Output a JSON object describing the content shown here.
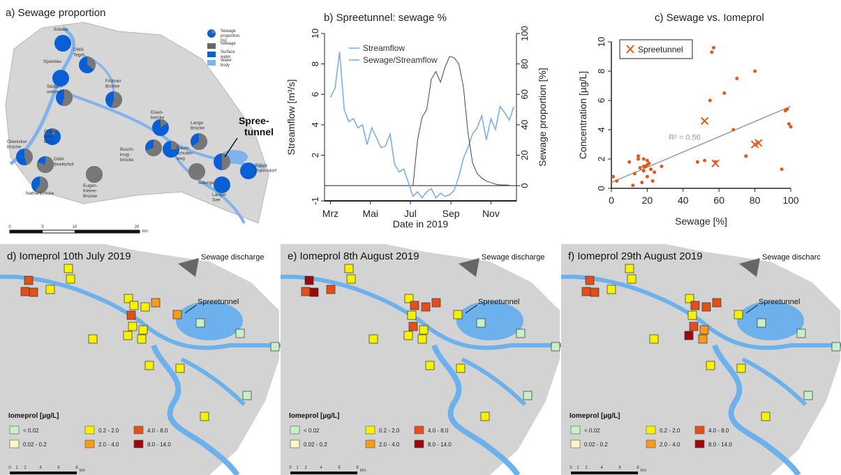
{
  "panel_a": {
    "title": "a) Sewage proportion",
    "legend": [
      "Sewage proportion [%]",
      "Sewage",
      "Surface water",
      "Water body"
    ],
    "stations": [
      {
        "label": "Ilsbose",
        "sewage": 0
      },
      {
        "label": "DWA Tegel",
        "sewage": 0.35
      },
      {
        "label": "Spandau",
        "sewage": 0
      },
      {
        "label": "Stößen- seesee",
        "sewage": 0.55
      },
      {
        "label": "Frühner Brücke",
        "sewage": 0.55
      },
      {
        "label": "Eisen- brücke",
        "sewage": 0.15
      },
      {
        "label": "Grune- wald- turm",
        "sewage": 0.1
      },
      {
        "label": "Busch- krug- brücke",
        "sewage": 0.7
      },
      {
        "label": "Baum- schulen- weg",
        "sewage": 0.25
      },
      {
        "label": "Lange Brücke",
        "sewage": 0.65
      },
      {
        "label": "Fähre Rahnsdorf",
        "sewage": 0
      },
      {
        "label": "Glienicker Brücke",
        "sewage": 0.45
      },
      {
        "label": "DWA Beelitzhof",
        "sewage": 0.8
      },
      {
        "label": "Eugen- Kleine- Brücke",
        "sewage": 1.0
      },
      {
        "label": "Adlergestell",
        "sewage": 1.0
      },
      {
        "label": "Nathanbrücke",
        "sewage": 0.6
      },
      {
        "label": "Langer See",
        "sewage": 0
      },
      {
        "label": "",
        "sewage": 0.5
      }
    ],
    "highlight": "Spree- tunnel",
    "scale_ticks": [
      "0",
      "5",
      "10",
      "20"
    ],
    "scale_unit": "km"
  },
  "chart_data": [
    {
      "type": "line",
      "title": "b) Spreetunnel: sewage %",
      "xlabel": "Date in 2019",
      "ylabel_left": "Streamflow [m³/s]",
      "ylabel_right": "Sewage proportion [%]",
      "x_ticks": [
        "Mrz",
        "Mai",
        "Jul",
        "Sep",
        "Nov"
      ],
      "ylim_left": [
        -1,
        10
      ],
      "ylim_right": [
        -10,
        100
      ],
      "left_ticks": [
        -1,
        2,
        4,
        6,
        8,
        10
      ],
      "right_ticks": [
        0,
        20,
        40,
        60,
        80,
        100
      ],
      "series": [
        {
          "name": "Streamflow",
          "axis": "left",
          "color": "#7aaee6",
          "x": [
            "2019-03-01",
            "2019-03-08",
            "2019-03-15",
            "2019-03-22",
            "2019-03-29",
            "2019-04-05",
            "2019-04-12",
            "2019-04-19",
            "2019-04-26",
            "2019-05-03",
            "2019-05-10",
            "2019-05-17",
            "2019-05-24",
            "2019-05-31",
            "2019-06-07",
            "2019-06-14",
            "2019-06-21",
            "2019-06-28",
            "2019-07-05",
            "2019-07-12",
            "2019-07-19",
            "2019-07-26",
            "2019-08-02",
            "2019-08-09",
            "2019-08-16",
            "2019-08-23",
            "2019-08-30",
            "2019-09-06",
            "2019-09-13",
            "2019-09-20",
            "2019-09-27",
            "2019-10-04",
            "2019-10-11",
            "2019-10-18",
            "2019-10-25",
            "2019-11-01",
            "2019-11-08",
            "2019-11-15",
            "2019-11-22",
            "2019-11-29",
            "2019-12-06"
          ],
          "y": [
            5.8,
            6.4,
            8.8,
            5.0,
            4.2,
            4.4,
            3.8,
            4.0,
            2.7,
            3.8,
            3.2,
            2.5,
            2.6,
            3.4,
            1.4,
            0.9,
            1.1,
            0.2,
            -0.7,
            -0.4,
            -0.8,
            -0.4,
            -0.2,
            -0.8,
            -0.5,
            -0.7,
            -0.6,
            -0.3,
            0.6,
            1.8,
            2.5,
            3.4,
            3.8,
            4.6,
            3.0,
            4.4,
            3.7,
            5.2,
            4.8,
            4.3,
            5.2
          ]
        },
        {
          "name": "Sewage/Streamflow",
          "axis": "right",
          "color": "#444444",
          "x": [
            "2019-07-05",
            "2019-07-12",
            "2019-07-19",
            "2019-07-26",
            "2019-08-02",
            "2019-08-09",
            "2019-08-16",
            "2019-08-23",
            "2019-08-30",
            "2019-09-06",
            "2019-09-13",
            "2019-09-20",
            "2019-09-27",
            "2019-10-04",
            "2019-10-11",
            "2019-10-18",
            "2019-10-25",
            "2019-11-01",
            "2019-11-08",
            "2019-11-15",
            "2019-11-22",
            "2019-11-29"
          ],
          "y": [
            0,
            30,
            45,
            50,
            70,
            75,
            68,
            78,
            85,
            84,
            80,
            65,
            35,
            15,
            8,
            5,
            3,
            2,
            1,
            0.5,
            0.5,
            0.3
          ]
        }
      ]
    },
    {
      "type": "scatter",
      "title": "c) Sewage vs. Iomeprol",
      "xlabel": "Sewage [%]",
      "ylabel": "Concentration [µg/L]",
      "xlim": [
        0,
        100
      ],
      "ylim": [
        0,
        10
      ],
      "x_ticks": [
        0,
        20,
        40,
        60,
        80,
        100
      ],
      "y_ticks": [
        0,
        2,
        4,
        6,
        8,
        10
      ],
      "annotation": "R² = 0.56",
      "legend": "Spreetunnel",
      "fit": {
        "x": [
          0,
          100
        ],
        "y": [
          0.4,
          5.6
        ]
      },
      "series": [
        {
          "name": "",
          "color": "#e05a1f",
          "x": [
            10,
            13,
            15,
            17,
            18,
            18,
            19,
            20,
            20,
            21,
            22,
            23,
            15,
            18,
            24,
            28,
            48,
            52,
            55,
            56,
            57,
            58,
            63,
            68,
            70,
            75,
            80,
            95,
            97,
            98,
            99,
            100,
            12,
            16,
            20,
            3,
            1
          ],
          "y": [
            1.8,
            1.0,
            2.0,
            0.4,
            1.2,
            2.0,
            1.5,
            1.9,
            0.8,
            1.7,
            1.3,
            0.5,
            2.2,
            1.5,
            1.1,
            1.5,
            1.8,
            1.9,
            6.0,
            9.3,
            9.6,
            1.8,
            6.5,
            4.0,
            7.5,
            2.2,
            8.0,
            1.3,
            5.3,
            5.4,
            4.4,
            4.2,
            0.2,
            1.4,
            1.6,
            0.5,
            0.8
          ]
        },
        {
          "name": "Spreetunnel",
          "marker": "x",
          "color": "#e05a1f",
          "x": [
            52,
            58,
            80,
            82
          ],
          "y": [
            4.6,
            1.7,
            3.0,
            3.1
          ]
        }
      ]
    }
  ],
  "maps": [
    {
      "title": "d) Iomeprol 10th July 2019",
      "discharge": "Sewage discharge",
      "label": "Spreetunnel"
    },
    {
      "title": "e) Iomeprol 8th August 2019",
      "discharge": "Sewage discharge",
      "label": "Spreetunnel"
    },
    {
      "title": "f) Iomeprol 29th August 2019",
      "discharge": "Sewage discharc",
      "label": "Spreetunnel"
    }
  ],
  "map_classes": [
    {
      "label": "< 0.02",
      "color": "#c8efc8"
    },
    {
      "label": "0.02 - 0.2",
      "color": "#fbf6c8"
    },
    {
      "label": "0.2 - 2.0",
      "color": "#f6f200"
    },
    {
      "label": "2.0 - 4.0",
      "color": "#f59b1e"
    },
    {
      "label": "4.0 - 8.0",
      "color": "#e2501a"
    },
    {
      "label": "8.0 - 14.0",
      "color": "#9b0a0a"
    }
  ],
  "map_legend_title": "Iomeprol [µg/L]",
  "map_scale_ticks": [
    "0",
    "1",
    "2",
    "4",
    "6",
    "8"
  ],
  "map_scale_unit": "km",
  "map_site_classes": [
    [
      4,
      4,
      4,
      2,
      2,
      2,
      2,
      2,
      2,
      3,
      3,
      4,
      2,
      2,
      2,
      2,
      2,
      0,
      0,
      0,
      2,
      2,
      0,
      2
    ],
    [
      5,
      4,
      5,
      4,
      2,
      2,
      2,
      4,
      4,
      4,
      2,
      2,
      4,
      2,
      2,
      2,
      2,
      0,
      0,
      0,
      2,
      2,
      0,
      2
    ],
    [
      4,
      4,
      4,
      2,
      2,
      2,
      2,
      4,
      4,
      4,
      2,
      2,
      4,
      3,
      5,
      3,
      2,
      0,
      0,
      0,
      2,
      2,
      0,
      2
    ]
  ]
}
